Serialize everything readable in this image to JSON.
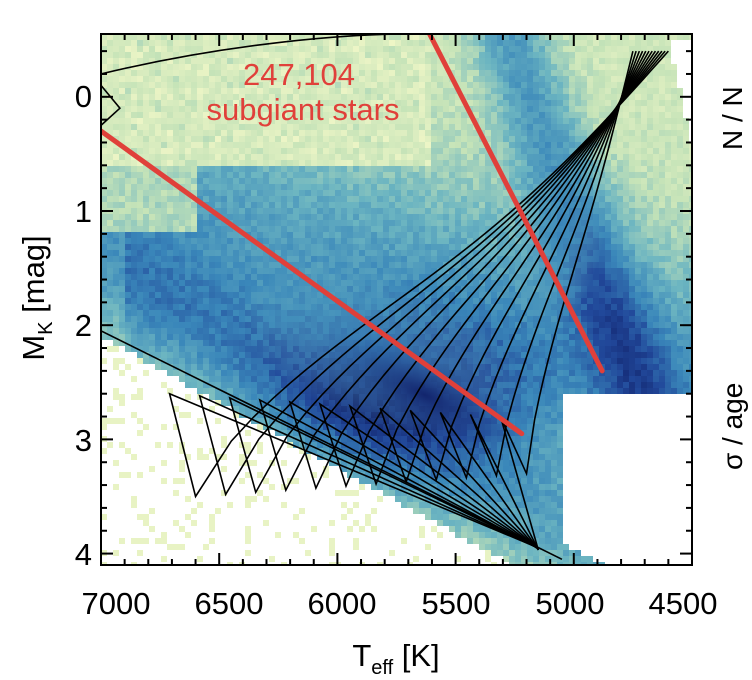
{
  "chart_data": {
    "type": "heatmap",
    "annotation": {
      "count": "247,104",
      "label": "subgiant stars",
      "color": "#e0403a"
    },
    "x_axis": {
      "label_main": "T",
      "label_sub": "eff",
      "label_unit": " [K]",
      "range": [
        7000,
        4500
      ],
      "reversed": true,
      "ticks": [
        7000,
        6500,
        6000,
        5500,
        5000,
        4500
      ],
      "tick_labels": [
        "7000",
        "6500",
        "6000",
        "5500",
        "5000",
        "4500"
      ]
    },
    "y_axis": {
      "label_main": "M",
      "label_sub": "K",
      "label_unit": " [mag]",
      "range": [
        -0.55,
        4.1
      ],
      "reversed": true,
      "ticks": [
        0,
        1,
        2,
        3,
        4
      ],
      "tick_labels": [
        "0",
        "1",
        "2",
        "3",
        "4"
      ]
    },
    "selection_lines": [
      {
        "name": "lower boundary",
        "color": "#e0403a",
        "points": [
          [
            7000,
            0.3
          ],
          [
            5220,
            2.95
          ]
        ]
      },
      {
        "name": "upper boundary",
        "color": "#e0403a",
        "points": [
          [
            5610,
            -0.55
          ],
          [
            4880,
            2.4
          ]
        ]
      }
    ],
    "contour_levels": 12,
    "colormap": [
      "#f3f8c8",
      "#c5e3b8",
      "#6cb5c1",
      "#3a87ba",
      "#21489a",
      "#11226b"
    ],
    "right_panel_partial": {
      "ylabel_fragment": "σ / age",
      "top_fragment": "N / N"
    }
  }
}
